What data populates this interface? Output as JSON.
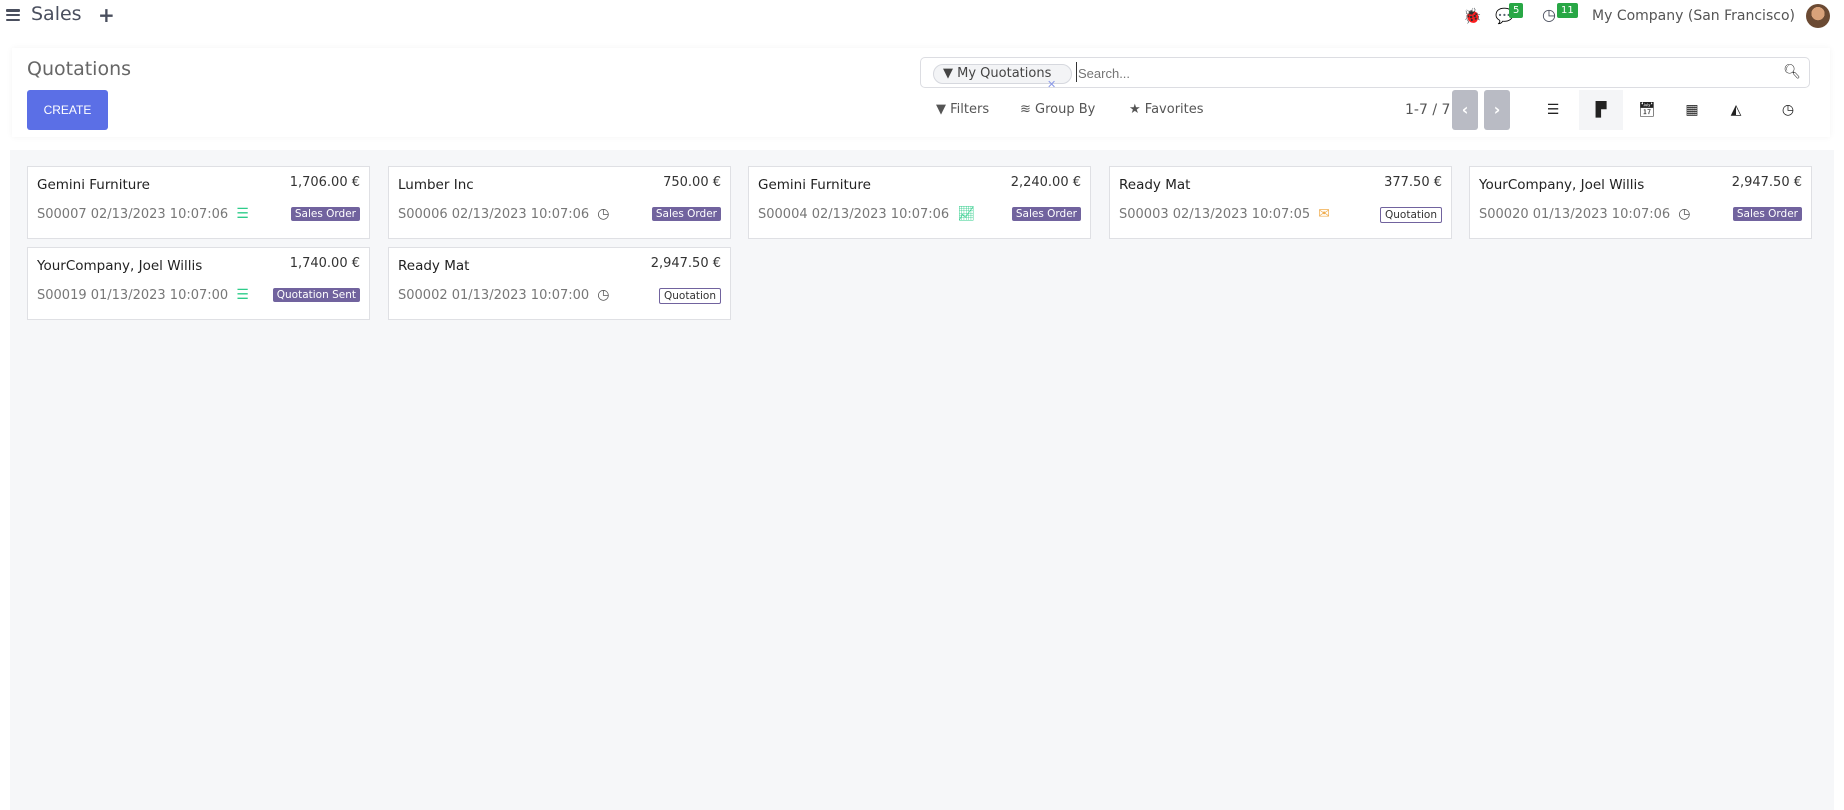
{
  "topbar": {
    "app_name": "Sales",
    "new_label": "+",
    "messages_count": "5",
    "activities_count": "11",
    "company": "My Company (San Francisco)"
  },
  "control_panel": {
    "title": "Quotations",
    "create_label": "CREATE",
    "search": {
      "facet": "My Quotations",
      "placeholder": "Search..."
    },
    "filters_label": "Filters",
    "groupby_label": "Group By",
    "favorites_label": "Favorites",
    "pager": "1-7 / 7",
    "views": [
      "list",
      "kanban",
      "calendar",
      "pivot",
      "graph",
      "activity"
    ],
    "active_view": "kanban"
  },
  "colors": {
    "create": "#5b6fe6",
    "tag": "#71639e",
    "activity_green": "#2ecc8a",
    "activity_orange": "#f0ad4e"
  },
  "cards": [
    {
      "customer": "Gemini Furniture",
      "amount": "1,706.00 €",
      "ref": "S00007 02/13/2023 10:07:06",
      "activity_icon": "tasks-icon",
      "status": "Sales Order"
    },
    {
      "customer": "Lumber Inc",
      "amount": "750.00 €",
      "ref": "S00006 02/13/2023 10:07:06",
      "activity_icon": "clock-icon",
      "status": "Sales Order"
    },
    {
      "customer": "Gemini Furniture",
      "amount": "2,240.00 €",
      "ref": "S00004 02/13/2023 10:07:06",
      "activity_icon": "chart-line-icon",
      "status": "Sales Order"
    },
    {
      "customer": "Ready Mat",
      "amount": "377.50 €",
      "ref": "S00003 02/13/2023 10:07:05",
      "activity_icon": "envelope-icon",
      "status": "Quotation"
    },
    {
      "customer": "YourCompany, Joel Willis",
      "amount": "2,947.50 €",
      "ref": "S00020 01/13/2023 10:07:06",
      "activity_icon": "clock-icon",
      "status": "Sales Order"
    },
    {
      "customer": "YourCompany, Joel Willis",
      "amount": "1,740.00 €",
      "ref": "S00019 01/13/2023 10:07:00",
      "activity_icon": "tasks-icon",
      "status": "Quotation Sent"
    },
    {
      "customer": "Ready Mat",
      "amount": "2,947.50 €",
      "ref": "S00002 01/13/2023 10:07:00",
      "activity_icon": "clock-icon",
      "status": "Quotation"
    }
  ]
}
